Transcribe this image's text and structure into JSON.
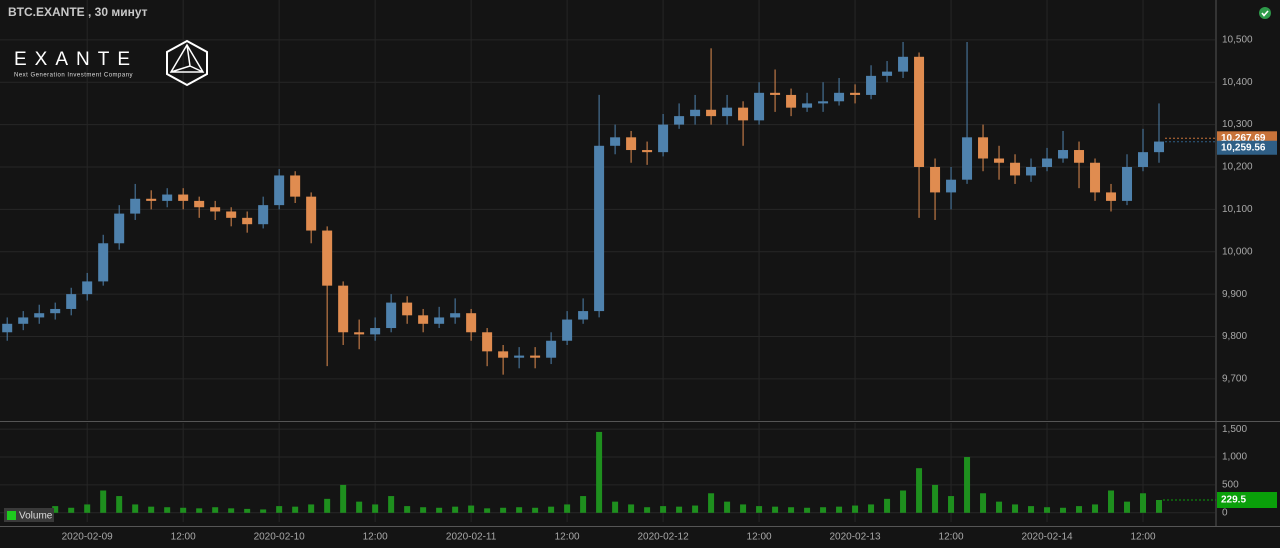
{
  "logo": {
    "name": "EXANTE",
    "tagline": "Next Generation Investment Company"
  },
  "chart_data": [
    {
      "type": "candlestick",
      "title": "BTC.EXANTE , 30 минут",
      "x": [
        -10,
        -8,
        -6,
        -4,
        -2,
        0,
        2,
        4,
        6,
        8,
        10,
        12,
        14,
        16,
        18,
        20,
        22,
        24,
        26,
        28,
        30,
        32,
        34,
        36,
        38,
        40,
        42,
        44,
        46,
        48,
        50,
        52,
        54,
        56,
        58,
        60,
        62,
        64,
        66,
        68,
        70,
        72,
        74,
        76,
        78,
        80,
        82,
        84,
        86,
        88,
        90,
        92,
        94,
        96,
        98,
        100,
        102,
        104,
        106,
        108,
        110,
        112,
        114,
        116,
        118,
        120,
        122,
        124,
        126,
        128,
        130,
        132,
        134
      ],
      "open": [
        9810,
        9830,
        9845,
        9855,
        9865,
        9900,
        9930,
        10020,
        10090,
        10125,
        10120,
        10135,
        10120,
        10105,
        10095,
        10080,
        10065,
        10110,
        10180,
        10130,
        10050,
        9920,
        9810,
        9805,
        9820,
        9880,
        9850,
        9830,
        9845,
        9855,
        9810,
        9765,
        9750,
        9755,
        9750,
        9790,
        9840,
        9860,
        10250,
        10270,
        10240,
        10235,
        10300,
        10320,
        10335,
        10320,
        10340,
        10310,
        10375,
        10370,
        10340,
        10350,
        10355,
        10375,
        10370,
        10415,
        10425,
        10460,
        10200,
        10140,
        10170,
        10270,
        10220,
        10210,
        10180,
        10200,
        10220,
        10240,
        10210,
        10140,
        10120,
        10200,
        10235
      ],
      "high": [
        9845,
        9860,
        9875,
        9880,
        9915,
        9950,
        10040,
        10110,
        10160,
        10145,
        10150,
        10150,
        10130,
        10120,
        10105,
        10095,
        10130,
        10195,
        10190,
        10140,
        10060,
        9930,
        9840,
        9845,
        9900,
        9895,
        9865,
        9870,
        9890,
        9865,
        9820,
        9780,
        9775,
        9775,
        9810,
        9860,
        9890,
        10370,
        10300,
        10285,
        10260,
        10325,
        10350,
        10370,
        10480,
        10370,
        10355,
        10400,
        10430,
        10385,
        10375,
        10400,
        10410,
        10395,
        10440,
        10450,
        10495,
        10470,
        10220,
        10200,
        10495,
        10300,
        10250,
        10230,
        10220,
        10245,
        10285,
        10260,
        10220,
        10160,
        10230,
        10290,
        10350
      ],
      "low": [
        9790,
        9815,
        9830,
        9840,
        9850,
        9885,
        9920,
        10005,
        10075,
        10100,
        10105,
        10100,
        10080,
        10075,
        10060,
        10045,
        10055,
        10100,
        10115,
        10020,
        9730,
        9780,
        9770,
        9790,
        9810,
        9830,
        9810,
        9820,
        9830,
        9790,
        9730,
        9710,
        9725,
        9725,
        9735,
        9780,
        9830,
        9845,
        10230,
        10210,
        10205,
        10225,
        10290,
        10300,
        10300,
        10300,
        10250,
        10300,
        10330,
        10320,
        10330,
        10330,
        10345,
        10350,
        10360,
        10400,
        10410,
        10080,
        10075,
        10100,
        10160,
        10190,
        10170,
        10160,
        10165,
        10190,
        10210,
        10150,
        10120,
        10095,
        10110,
        10190,
        10210
      ],
      "close": [
        9830,
        9845,
        9855,
        9865,
        9900,
        9930,
        10020,
        10090,
        10125,
        10120,
        10135,
        10120,
        10105,
        10095,
        10080,
        10065,
        10110,
        10180,
        10130,
        10050,
        9920,
        9810,
        9805,
        9820,
        9880,
        9850,
        9830,
        9845,
        9855,
        9810,
        9765,
        9750,
        9755,
        9750,
        9790,
        9840,
        9860,
        10250,
        10270,
        10240,
        10235,
        10300,
        10320,
        10335,
        10320,
        10340,
        10310,
        10375,
        10370,
        10340,
        10350,
        10355,
        10375,
        10370,
        10415,
        10425,
        10460,
        10200,
        10140,
        10170,
        10270,
        10220,
        10210,
        10180,
        10200,
        10220,
        10240,
        10210,
        10140,
        10120,
        10200,
        10235,
        10260
      ],
      "up_color": "#4f82ad",
      "down_color": "#e08c50",
      "xlim": [
        -10.9,
        141
      ],
      "ylim": [
        9603,
        10594
      ],
      "yticks": [
        {
          "value": 9700,
          "label": "9,700"
        },
        {
          "value": 9800,
          "label": "9,800"
        },
        {
          "value": 9900,
          "label": "9,900"
        },
        {
          "value": 10000,
          "label": "10,000"
        },
        {
          "value": 10100,
          "label": "10,100"
        },
        {
          "value": 10200,
          "label": "10,200"
        },
        {
          "value": 10300,
          "label": "10,300"
        },
        {
          "value": 10400,
          "label": "10,400"
        },
        {
          "value": 10500,
          "label": "10,500"
        }
      ],
      "price_tags": [
        {
          "value": 10267.69,
          "label": "10,267.69",
          "color": "#c8733a"
        },
        {
          "value": 10259.56,
          "label": "10,259.56",
          "color": "#2f5f86"
        }
      ],
      "grid": true
    },
    {
      "type": "bar",
      "name": "Volume",
      "color": "#1e8f1e",
      "x": [
        -10,
        -8,
        -6,
        -4,
        -2,
        0,
        2,
        4,
        6,
        8,
        10,
        12,
        14,
        16,
        18,
        20,
        22,
        24,
        26,
        28,
        30,
        32,
        34,
        36,
        38,
        40,
        42,
        44,
        46,
        48,
        50,
        52,
        54,
        56,
        58,
        60,
        62,
        64,
        66,
        68,
        70,
        72,
        74,
        76,
        78,
        80,
        82,
        84,
        86,
        88,
        90,
        92,
        94,
        96,
        98,
        100,
        102,
        104,
        106,
        108,
        110,
        112,
        114,
        116,
        118,
        120,
        122,
        124,
        126,
        128,
        130,
        132,
        134
      ],
      "values": [
        60,
        70,
        80,
        120,
        90,
        150,
        400,
        300,
        150,
        110,
        100,
        90,
        80,
        100,
        80,
        70,
        60,
        120,
        110,
        150,
        250,
        500,
        200,
        150,
        300,
        120,
        100,
        90,
        110,
        130,
        80,
        90,
        100,
        90,
        110,
        150,
        300,
        1450,
        200,
        150,
        100,
        120,
        110,
        130,
        350,
        200,
        150,
        120,
        110,
        100,
        90,
        100,
        110,
        130,
        150,
        250,
        400,
        800,
        500,
        300,
        1000,
        350,
        200,
        150,
        120,
        100,
        90,
        120,
        150,
        400,
        200,
        350,
        229.5
      ],
      "last_color": "#0aa00a",
      "xlim": [
        -10.9,
        141
      ],
      "ylim": [
        -165,
        1610
      ],
      "yticks": [
        0,
        500,
        {
          "value": 1000,
          "label": "1,000"
        },
        {
          "value": 1500,
          "label": "1,500"
        }
      ],
      "xticks": [
        {
          "value": 0,
          "label": "2020-02-09"
        },
        {
          "value": 12,
          "label": "12:00"
        },
        {
          "value": 24,
          "label": "2020-02-10"
        },
        {
          "value": 36,
          "label": "12:00"
        },
        {
          "value": 48,
          "label": "2020-02-11"
        },
        {
          "value": 60,
          "label": "12:00"
        },
        {
          "value": 72,
          "label": "2020-02-12"
        },
        {
          "value": 84,
          "label": "12:00"
        },
        {
          "value": 96,
          "label": "2020-02-13"
        },
        {
          "value": 108,
          "label": "12:00"
        },
        {
          "value": 120,
          "label": "2020-02-14"
        },
        {
          "value": 132,
          "label": "12:00"
        }
      ],
      "grid": true
    }
  ]
}
